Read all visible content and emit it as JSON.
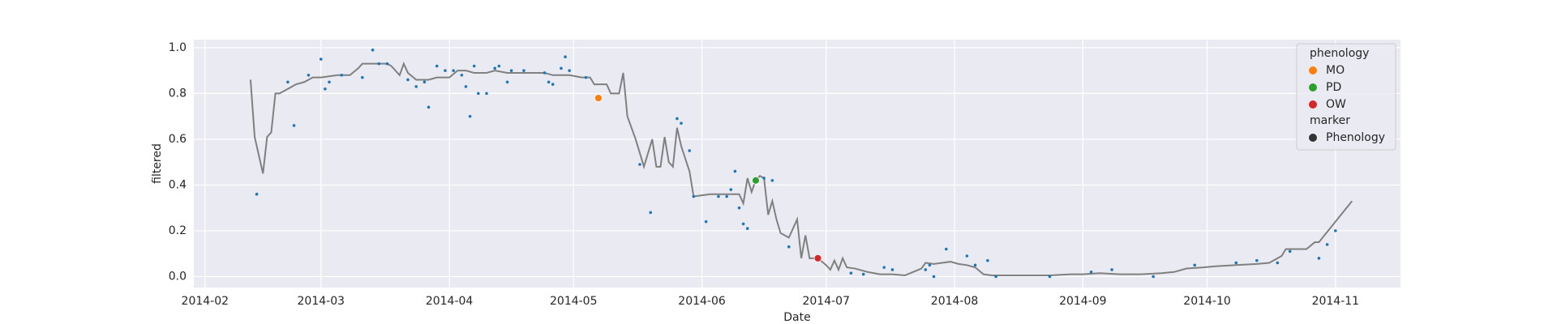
{
  "chart_data": {
    "type": "line",
    "x_label": "Date",
    "y_label": "filtered",
    "xlim": [
      28.3,
      319.7
    ],
    "ylim": [
      -0.048,
      1.035
    ],
    "xticks": [
      {
        "value": 31,
        "label": "2014-02"
      },
      {
        "value": 59,
        "label": "2014-03"
      },
      {
        "value": 90,
        "label": "2014-04"
      },
      {
        "value": 120,
        "label": "2014-05"
      },
      {
        "value": 151,
        "label": "2014-06"
      },
      {
        "value": 181,
        "label": "2014-07"
      },
      {
        "value": 212,
        "label": "2014-08"
      },
      {
        "value": 243,
        "label": "2014-09"
      },
      {
        "value": 273,
        "label": "2014-10"
      },
      {
        "value": 304,
        "label": "2014-11"
      }
    ],
    "yticks": [
      {
        "value": 0,
        "label": "0.0"
      },
      0.2,
      0.4,
      0.6,
      0.8,
      {
        "value": 1,
        "label": "1.0"
      }
    ],
    "grid": true,
    "background": "#eaeaf2",
    "line": {
      "color": "#808080",
      "x": [
        42,
        43,
        45,
        46,
        47,
        48,
        49,
        51,
        53,
        55,
        57,
        59,
        63,
        66,
        68,
        69,
        71,
        73,
        75,
        76,
        78,
        79,
        80,
        82,
        85,
        87,
        90,
        92,
        94,
        96,
        99,
        101,
        104,
        106,
        109,
        113,
        115,
        119,
        122,
        124,
        125,
        128,
        129,
        131,
        132,
        133,
        135,
        137,
        139,
        140,
        141,
        142,
        143,
        144,
        145,
        146,
        148,
        149,
        153,
        155,
        157,
        159,
        160,
        161,
        162,
        163,
        164,
        165,
        166,
        167,
        168,
        169,
        170,
        172,
        174,
        175,
        176,
        177,
        179,
        181,
        182,
        183,
        184,
        185,
        186,
        188,
        191,
        194,
        197,
        200,
        202,
        204,
        205,
        207,
        209,
        211,
        213,
        215,
        217,
        219,
        221,
        225,
        230,
        235,
        240,
        243,
        247,
        252,
        257,
        262,
        265,
        268,
        272,
        275,
        280,
        285,
        288,
        291,
        292,
        295,
        297,
        299,
        300,
        308
      ],
      "values": [
        0.86,
        0.61,
        0.45,
        0.61,
        0.63,
        0.8,
        0.8,
        0.82,
        0.84,
        0.85,
        0.87,
        0.87,
        0.88,
        0.88,
        0.91,
        0.93,
        0.93,
        0.93,
        0.93,
        0.92,
        0.88,
        0.93,
        0.89,
        0.86,
        0.86,
        0.87,
        0.87,
        0.9,
        0.9,
        0.89,
        0.89,
        0.9,
        0.89,
        0.89,
        0.89,
        0.89,
        0.88,
        0.88,
        0.87,
        0.87,
        0.84,
        0.84,
        0.8,
        0.8,
        0.89,
        0.7,
        0.6,
        0.48,
        0.6,
        0.48,
        0.48,
        0.61,
        0.5,
        0.48,
        0.65,
        0.57,
        0.46,
        0.35,
        0.36,
        0.36,
        0.36,
        0.36,
        0.36,
        0.32,
        0.43,
        0.37,
        0.42,
        0.44,
        0.43,
        0.27,
        0.33,
        0.25,
        0.19,
        0.17,
        0.25,
        0.08,
        0.18,
        0.08,
        0.08,
        0.05,
        0.03,
        0.07,
        0.03,
        0.08,
        0.04,
        0.035,
        0.02,
        0.01,
        0.01,
        0.005,
        0.02,
        0.035,
        0.06,
        0.055,
        0.06,
        0.065,
        0.055,
        0.05,
        0.04,
        0.01,
        0.005,
        0.005,
        0.005,
        0.005,
        0.01,
        0.01,
        0.015,
        0.01,
        0.01,
        0.015,
        0.02,
        0.035,
        0.04,
        0.045,
        0.05,
        0.055,
        0.06,
        0.09,
        0.12,
        0.12,
        0.12,
        0.15,
        0.15,
        0.33
      ]
    },
    "points": {
      "color": "#1f77b4",
      "x": [
        43.5,
        51,
        52.5,
        56,
        59,
        60,
        61,
        64,
        69,
        71.5,
        73,
        75,
        80,
        82,
        84,
        85,
        87,
        89,
        91,
        93,
        94,
        95,
        96,
        97,
        99,
        101,
        102,
        104,
        105,
        108,
        113,
        114,
        115,
        117,
        118,
        119,
        123,
        136,
        138.6,
        145,
        146,
        148,
        149,
        152,
        155,
        157,
        158,
        159,
        160,
        161,
        162,
        166,
        168,
        172,
        187,
        190,
        195,
        197,
        205,
        206,
        207,
        210,
        215,
        217,
        220,
        222,
        235,
        245,
        250,
        260,
        270,
        280,
        285,
        290,
        293,
        300,
        302,
        304
      ],
      "values": [
        0.36,
        0.85,
        0.66,
        0.88,
        0.95,
        0.82,
        0.85,
        0.88,
        0.87,
        0.99,
        0.93,
        0.93,
        0.86,
        0.83,
        0.85,
        0.74,
        0.92,
        0.9,
        0.9,
        0.88,
        0.83,
        0.7,
        0.92,
        0.8,
        0.8,
        0.91,
        0.92,
        0.85,
        0.9,
        0.9,
        0.89,
        0.85,
        0.84,
        0.91,
        0.96,
        0.9,
        0.87,
        0.49,
        0.28,
        0.69,
        0.67,
        0.55,
        0.35,
        0.24,
        0.35,
        0.35,
        0.38,
        0.46,
        0.3,
        0.23,
        0.21,
        0.43,
        0.42,
        0.13,
        0.015,
        0.01,
        0.04,
        0.03,
        0.03,
        0.05,
        0.0,
        0.12,
        0.09,
        0.05,
        0.07,
        0.0,
        0.0,
        0.02,
        0.03,
        0.0,
        0.05,
        0.06,
        0.07,
        0.06,
        0.11,
        0.08,
        0.14,
        0.2
      ]
    },
    "phenology": {
      "title": "phenology",
      "series": [
        {
          "name": "MO",
          "color": "#ff7f0e",
          "x": [
            126
          ],
          "values": [
            0.78
          ]
        },
        {
          "name": "PD",
          "color": "#2ca02c",
          "x": [
            164
          ],
          "values": [
            0.42
          ]
        },
        {
          "name": "OW",
          "color": "#d62728",
          "x": [
            179
          ],
          "values": [
            0.08
          ]
        }
      ]
    },
    "marker_legend": {
      "title": "marker",
      "entries": [
        {
          "name": "Phenology",
          "color": "#333333"
        }
      ]
    },
    "legend_position": "upper right"
  }
}
